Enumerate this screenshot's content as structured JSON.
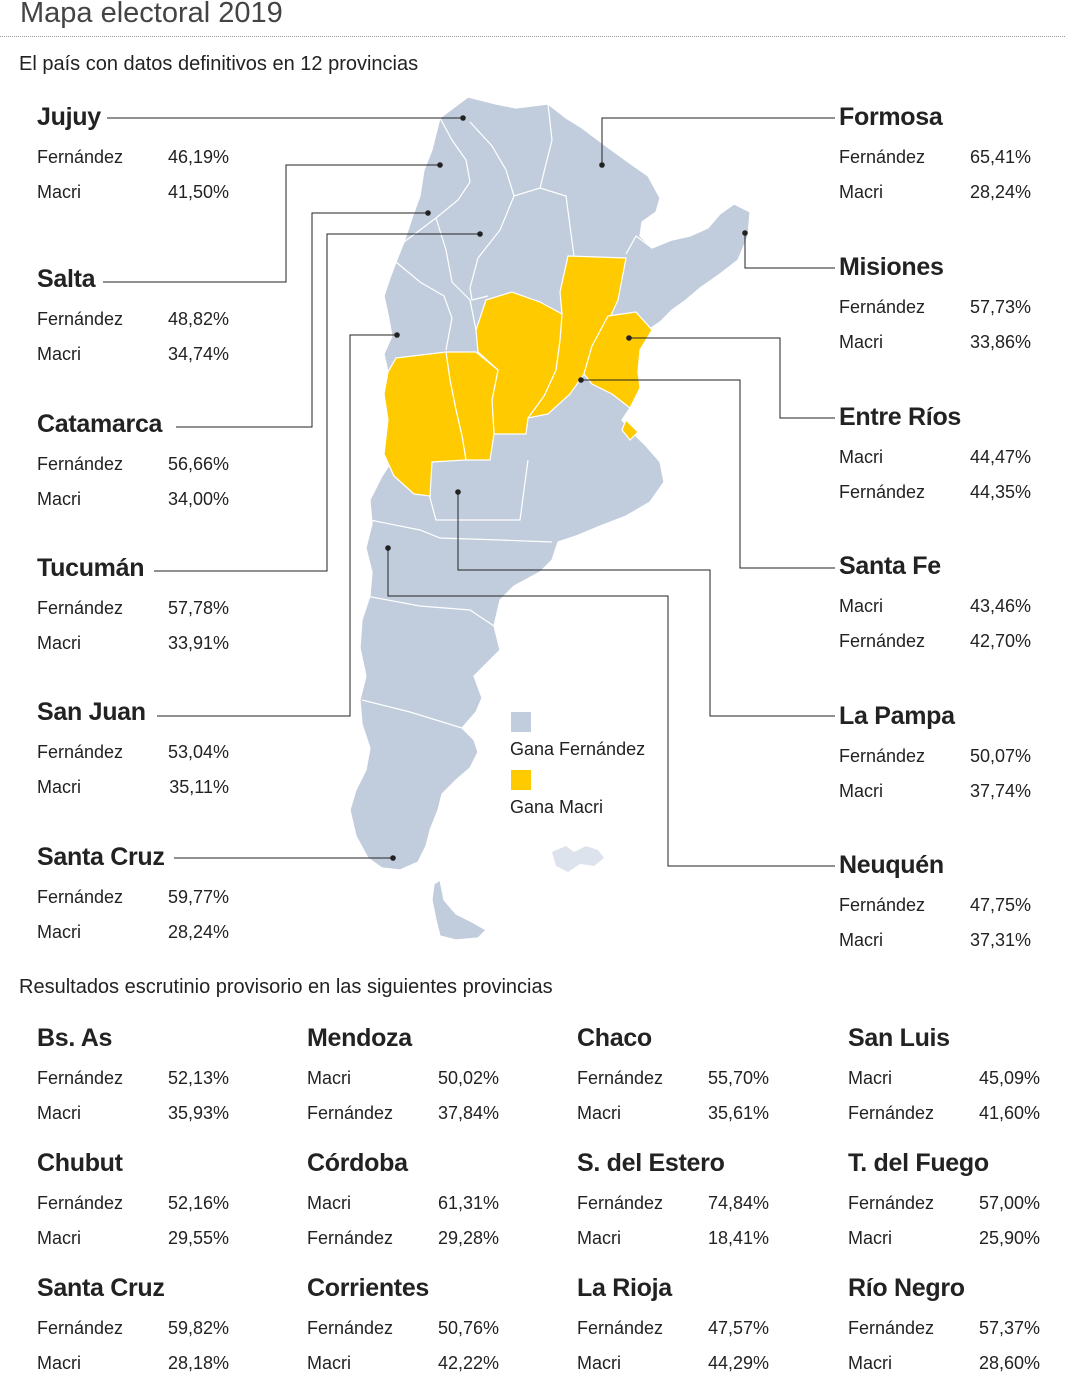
{
  "title": "Mapa electoral 2019",
  "subtitle": "El país con datos definitivos en 12 provincias",
  "section2_title": "Resultados escrutinio provisorio en las siguientes provincias",
  "colors": {
    "fernandez": "#c1cddd",
    "macri": "#ffca00",
    "leader": "#222222"
  },
  "legend": [
    {
      "label": "Gana Fernández",
      "color": "#c1cddd"
    },
    {
      "label": "Gana Macri",
      "color": "#ffca00"
    }
  ],
  "definitive_left": [
    {
      "name": "Jujuy",
      "rows": [
        {
          "candidate": "Fernández",
          "pct": "46,19%"
        },
        {
          "candidate": "Macri",
          "pct": "41,50%"
        }
      ]
    },
    {
      "name": "Salta",
      "rows": [
        {
          "candidate": "Fernández",
          "pct": "48,82%"
        },
        {
          "candidate": "Macri",
          "pct": "34,74%"
        }
      ]
    },
    {
      "name": "Catamarca",
      "rows": [
        {
          "candidate": "Fernández",
          "pct": "56,66%"
        },
        {
          "candidate": "Macri",
          "pct": "34,00%"
        }
      ]
    },
    {
      "name": "Tucumán",
      "rows": [
        {
          "candidate": "Fernández",
          "pct": "57,78%"
        },
        {
          "candidate": "Macri",
          "pct": "33,91%"
        }
      ]
    },
    {
      "name": "San Juan",
      "rows": [
        {
          "candidate": "Fernández",
          "pct": "53,04%"
        },
        {
          "candidate": "Macri",
          "pct": "35,11%"
        }
      ]
    },
    {
      "name": "Santa Cruz",
      "rows": [
        {
          "candidate": "Fernández",
          "pct": "59,77%"
        },
        {
          "candidate": "Macri",
          "pct": "28,24%"
        }
      ]
    }
  ],
  "definitive_right": [
    {
      "name": "Formosa",
      "rows": [
        {
          "candidate": "Fernández",
          "pct": "65,41%"
        },
        {
          "candidate": "Macri",
          "pct": "28,24%"
        }
      ]
    },
    {
      "name": "Misiones",
      "rows": [
        {
          "candidate": "Fernández",
          "pct": "57,73%"
        },
        {
          "candidate": "Macri",
          "pct": "33,86%"
        }
      ]
    },
    {
      "name": "Entre Ríos",
      "rows": [
        {
          "candidate": "Macri",
          "pct": "44,47%"
        },
        {
          "candidate": "Fernández",
          "pct": "44,35%"
        }
      ]
    },
    {
      "name": "Santa Fe",
      "rows": [
        {
          "candidate": "Macri",
          "pct": "43,46%"
        },
        {
          "candidate": "Fernández",
          "pct": "42,70%"
        }
      ]
    },
    {
      "name": "La Pampa",
      "rows": [
        {
          "candidate": "Fernández",
          "pct": "50,07%"
        },
        {
          "candidate": "Macri",
          "pct": "37,74%"
        }
      ]
    },
    {
      "name": "Neuquén",
      "rows": [
        {
          "candidate": "Fernández",
          "pct": "47,75%"
        },
        {
          "candidate": "Macri",
          "pct": "37,31%"
        }
      ]
    }
  ],
  "provisional": [
    {
      "name": "Bs. As",
      "rows": [
        {
          "candidate": "Fernández",
          "pct": "52,13%"
        },
        {
          "candidate": "Macri",
          "pct": "35,93%"
        }
      ]
    },
    {
      "name": "Mendoza",
      "rows": [
        {
          "candidate": "Macri",
          "pct": "50,02%"
        },
        {
          "candidate": "Fernández",
          "pct": "37,84%"
        }
      ]
    },
    {
      "name": "Chaco",
      "rows": [
        {
          "candidate": "Fernández",
          "pct": "55,70%"
        },
        {
          "candidate": "Macri",
          "pct": "35,61%"
        }
      ]
    },
    {
      "name": "San Luis",
      "rows": [
        {
          "candidate": "Macri",
          "pct": "45,09%"
        },
        {
          "candidate": "Fernández",
          "pct": "41,60%"
        }
      ]
    },
    {
      "name": "Chubut",
      "rows": [
        {
          "candidate": "Fernández",
          "pct": "52,16%"
        },
        {
          "candidate": "Macri",
          "pct": "29,55%"
        }
      ]
    },
    {
      "name": "Córdoba",
      "rows": [
        {
          "candidate": "Macri",
          "pct": "61,31%"
        },
        {
          "candidate": "Fernández",
          "pct": "29,28%"
        }
      ]
    },
    {
      "name": "S. del Estero",
      "rows": [
        {
          "candidate": "Fernández",
          "pct": "74,84%"
        },
        {
          "candidate": "Macri",
          "pct": "18,41%"
        }
      ]
    },
    {
      "name": "T. del Fuego",
      "rows": [
        {
          "candidate": "Fernández",
          "pct": "57,00%"
        },
        {
          "candidate": "Macri",
          "pct": "25,90%"
        }
      ]
    },
    {
      "name": "Santa Cruz",
      "rows": [
        {
          "candidate": "Fernández",
          "pct": "59,82%"
        },
        {
          "candidate": "Macri",
          "pct": "28,18%"
        }
      ]
    },
    {
      "name": "Corrientes",
      "rows": [
        {
          "candidate": "Fernández",
          "pct": "50,76%"
        },
        {
          "candidate": "Macri",
          "pct": "42,22%"
        }
      ]
    },
    {
      "name": "La Rioja",
      "rows": [
        {
          "candidate": "Fernández",
          "pct": "47,57%"
        },
        {
          "candidate": "Macri",
          "pct": "44,29%"
        }
      ]
    },
    {
      "name": "Río Negro",
      "rows": [
        {
          "candidate": "Fernández",
          "pct": "57,37%"
        },
        {
          "candidate": "Macri",
          "pct": "28,60%"
        }
      ]
    }
  ]
}
